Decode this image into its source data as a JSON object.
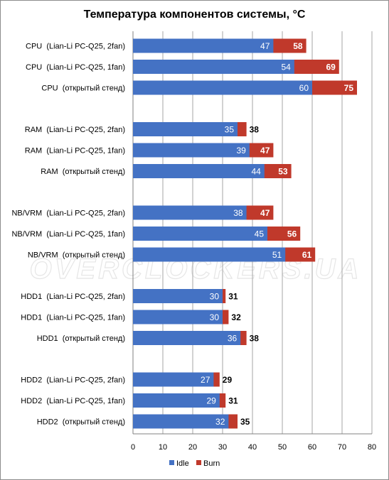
{
  "chart_data": {
    "type": "bar",
    "orientation": "horizontal",
    "stacked": "overlay",
    "title": "Температура компонентов системы, °C",
    "watermark": "OVERCLOCKERS.UA",
    "categories": [
      "CPU  (Lian-Li PC-Q25, 2fan)",
      "CPU  (Lian-Li PC-Q25, 1fan)",
      "CPU  (открытый стенд)",
      "RAM  (Lian-Li PC-Q25, 2fan)",
      "RAM  (Lian-Li PC-Q25, 1fan)",
      "RAM  (открытый стенд)",
      "NB/VRM  (Lian-Li PC-Q25, 2fan)",
      "NB/VRM  (Lian-Li PC-Q25, 1fan)",
      "NB/VRM  (открытый стенд)",
      "HDD1  (Lian-Li PC-Q25, 2fan)",
      "HDD1  (Lian-Li PC-Q25, 1fan)",
      "HDD1  (открытый стенд)",
      "HDD2  (Lian-Li PC-Q25, 2fan)",
      "HDD2  (Lian-Li PC-Q25, 1fan)",
      "HDD2  (открытый стенд)"
    ],
    "series": [
      {
        "name": "Idle",
        "color": "#4472c4",
        "values": [
          47,
          54,
          60,
          35,
          39,
          44,
          38,
          45,
          51,
          30,
          30,
          36,
          27,
          29,
          32
        ]
      },
      {
        "name": "Burn",
        "color": "#c0392b",
        "values": [
          58,
          69,
          75,
          38,
          47,
          53,
          47,
          56,
          61,
          31,
          32,
          38,
          29,
          31,
          35
        ]
      }
    ],
    "xlim": [
      0,
      80
    ],
    "xticks": [
      0,
      10,
      20,
      30,
      40,
      50,
      60,
      70,
      80
    ],
    "grid": true,
    "legend": "bottom"
  }
}
